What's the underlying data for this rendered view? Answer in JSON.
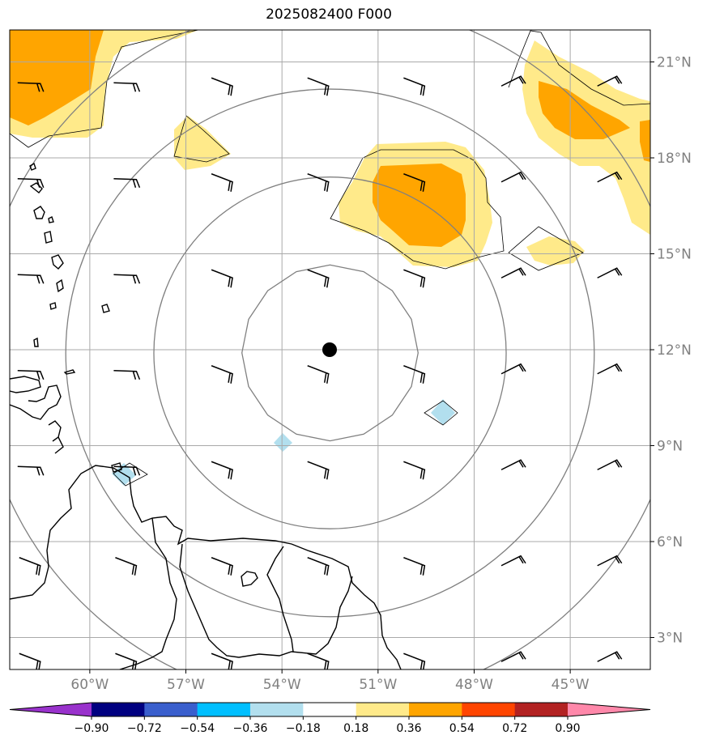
{
  "title": "2025082400 F000",
  "map": {
    "extent": {
      "lon": [
        -62.5,
        -42.5
      ],
      "lat": [
        2,
        22
      ]
    },
    "lat_ticks": [
      {
        "value": 21,
        "label": "21°N"
      },
      {
        "value": 18,
        "label": "18°N"
      },
      {
        "value": 15,
        "label": "15°N"
      },
      {
        "value": 12,
        "label": "12°N"
      },
      {
        "value": 9,
        "label": "9°N"
      },
      {
        "value": 6,
        "label": "6°N"
      },
      {
        "value": 3,
        "label": "3°N"
      }
    ],
    "lon_ticks": [
      {
        "value": -60,
        "label": "60°W"
      },
      {
        "value": -57,
        "label": "57°W"
      },
      {
        "value": -54,
        "label": "54°W"
      },
      {
        "value": -51,
        "label": "51°W"
      },
      {
        "value": -48,
        "label": "48°W"
      },
      {
        "value": -45,
        "label": "45°W"
      }
    ],
    "center": {
      "lon": -52.5,
      "lat": 11.9
    },
    "range_rings_deg": [
      2.75,
      5.5,
      8.25,
      11.0
    ],
    "grid": true
  },
  "colorbar": {
    "colors": [
      "#9932cc",
      "#000080",
      "#3a5fcd",
      "#00bfff",
      "#b2dfee",
      "#ffffff",
      "#ffea8a",
      "#ffa500",
      "#ff4500",
      "#b22222",
      "#ff88aa"
    ],
    "labels": [
      "−0.90",
      "−0.72",
      "−0.54",
      "−0.36",
      "−0.18",
      "0.18",
      "0.36",
      "0.54",
      "0.72",
      "0.90"
    ]
  },
  "colors": {
    "light_yellow": "#ffea8a",
    "orange": "#ffa500",
    "light_blue": "#b2dfee",
    "grid": "#a9a9a9",
    "ring": "#808080"
  }
}
